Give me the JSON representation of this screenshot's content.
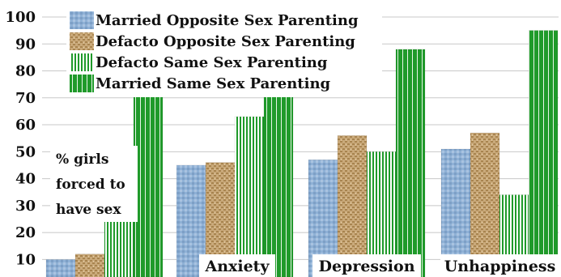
{
  "chart_data": {
    "type": "bar",
    "categories": [
      "% girls forced to have sex",
      "Anxiety",
      "Depression",
      "Unhappiness"
    ],
    "category_labels": [
      "",
      "Anxiety",
      "Depression",
      "Unhappiness"
    ],
    "side_note": [
      "% girls",
      "forced to",
      "have sex"
    ],
    "series": [
      {
        "name": "Married Opposite Sex Parenting",
        "values": [
          10,
          45,
          47,
          51
        ],
        "pattern": "blue-texture",
        "color": "#8fb0d3"
      },
      {
        "name": "Defacto Opposite Sex Parenting",
        "values": [
          12,
          46,
          56,
          57
        ],
        "pattern": "burlap",
        "color": "#c7a678"
      },
      {
        "name": "Defacto Same Sex Parenting",
        "values": [
          24,
          63,
          50,
          34
        ],
        "pattern": "vertical-stripes",
        "color": "#1f9a2a"
      },
      {
        "name": "Married Same Sex Parenting",
        "values": [
          71,
          71,
          88,
          95
        ],
        "pattern": "wide-stripes",
        "color": "#1f9a2a"
      }
    ],
    "yticks": [
      10,
      20,
      30,
      40,
      50,
      60,
      70,
      80,
      90,
      100
    ],
    "ylim": [
      2,
      100
    ],
    "grid": true,
    "legend_position": "top-left"
  }
}
